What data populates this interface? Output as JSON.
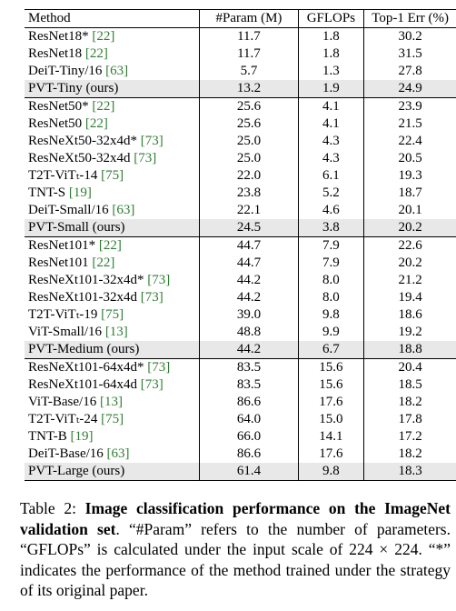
{
  "table": {
    "headers": {
      "method": "Method",
      "params": "#Param (M)",
      "gflops": "GFLOPs",
      "top1": "Top-1 Err (%)"
    },
    "rows": [
      {
        "name": "ResNet18*",
        "cite": "[22]",
        "params": "11.7",
        "gflops": "1.8",
        "top1": "30.2"
      },
      {
        "name": "ResNet18",
        "cite": "[22]",
        "params": "11.7",
        "gflops": "1.8",
        "top1": "31.5"
      },
      {
        "name": "DeiT-Tiny/16",
        "cite": "[63]",
        "params": "5.7",
        "gflops": "1.3",
        "top1": "27.8"
      },
      {
        "name": "PVT-Tiny (ours)",
        "cite": "",
        "params": "13.2",
        "gflops": "1.9",
        "top1": "24.9"
      },
      {
        "name": "ResNet50*",
        "cite": "[22]",
        "params": "25.6",
        "gflops": "4.1",
        "top1": "23.9"
      },
      {
        "name": "ResNet50",
        "cite": "[22]",
        "params": "25.6",
        "gflops": "4.1",
        "top1": "21.5"
      },
      {
        "name": "ResNeXt50-32x4d*",
        "cite": "[73]",
        "params": "25.0",
        "gflops": "4.3",
        "top1": "22.4"
      },
      {
        "name": "ResNeXt50-32x4d",
        "cite": "[73]",
        "params": "25.0",
        "gflops": "4.3",
        "top1": "20.5"
      },
      {
        "name": "T2T-ViTₜ-14",
        "cite": "[75]",
        "params": "22.0",
        "gflops": "6.1",
        "top1": "19.3"
      },
      {
        "name": "TNT-S",
        "cite": "[19]",
        "params": "23.8",
        "gflops": "5.2",
        "top1": "18.7"
      },
      {
        "name": "DeiT-Small/16",
        "cite": "[63]",
        "params": "22.1",
        "gflops": "4.6",
        "top1": "20.1"
      },
      {
        "name": "PVT-Small (ours)",
        "cite": "",
        "params": "24.5",
        "gflops": "3.8",
        "top1": "20.2"
      },
      {
        "name": "ResNet101*",
        "cite": "[22]",
        "params": "44.7",
        "gflops": "7.9",
        "top1": "22.6"
      },
      {
        "name": "ResNet101",
        "cite": "[22]",
        "params": "44.7",
        "gflops": "7.9",
        "top1": "20.2"
      },
      {
        "name": "ResNeXt101-32x4d*",
        "cite": "[73]",
        "params": "44.2",
        "gflops": "8.0",
        "top1": "21.2"
      },
      {
        "name": "ResNeXt101-32x4d",
        "cite": "[73]",
        "params": "44.2",
        "gflops": "8.0",
        "top1": "19.4"
      },
      {
        "name": "T2T-ViTₜ-19",
        "cite": "[75]",
        "params": "39.0",
        "gflops": "9.8",
        "top1": "18.6"
      },
      {
        "name": "ViT-Small/16",
        "cite": "[13]",
        "params": "48.8",
        "gflops": "9.9",
        "top1": "19.2"
      },
      {
        "name": "PVT-Medium (ours)",
        "cite": "",
        "params": "44.2",
        "gflops": "6.7",
        "top1": "18.8"
      },
      {
        "name": "ResNeXt101-64x4d*",
        "cite": "[73]",
        "params": "83.5",
        "gflops": "15.6",
        "top1": "20.4"
      },
      {
        "name": "ResNeXt101-64x4d",
        "cite": "[73]",
        "params": "83.5",
        "gflops": "15.6",
        "top1": "18.5"
      },
      {
        "name": "ViT-Base/16",
        "cite": "[13]",
        "params": "86.6",
        "gflops": "17.6",
        "top1": "18.2"
      },
      {
        "name": "T2T-ViTₜ-24",
        "cite": "[75]",
        "params": "64.0",
        "gflops": "15.0",
        "top1": "17.8"
      },
      {
        "name": "TNT-B",
        "cite": "[19]",
        "params": "66.0",
        "gflops": "14.1",
        "top1": "17.2"
      },
      {
        "name": "DeiT-Base/16",
        "cite": "[63]",
        "params": "86.6",
        "gflops": "17.6",
        "top1": "18.2"
      },
      {
        "name": "PVT-Large (ours)",
        "cite": "",
        "params": "61.4",
        "gflops": "9.8",
        "top1": "18.3"
      }
    ]
  },
  "caption": {
    "label": "Table 2:",
    "title": "Image classification performance on the ImageNet validation set",
    "body": ". “#Param” refers to the number of parameters. “GFLOPs” is calculated under the input scale of 224 × 224. “*” indicates the performance of the method trained under the strategy of its original paper."
  },
  "colors": {
    "citation": "#2e7d32",
    "highlight_row": "#e8e8e8"
  }
}
